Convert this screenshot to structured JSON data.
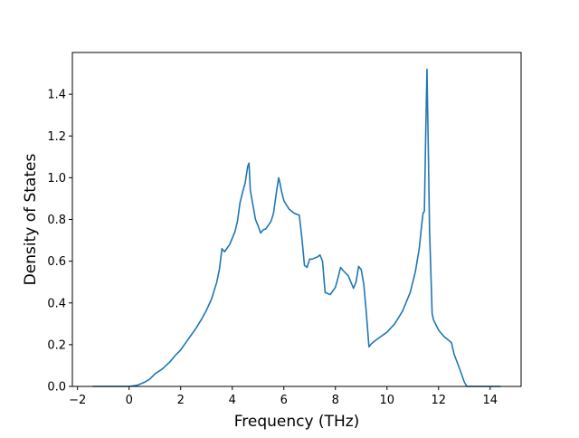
{
  "chart_data": {
    "type": "line",
    "title": "",
    "xlabel": "Frequency (THz)",
    "ylabel": "Density of States",
    "xlim": [
      -2.2,
      15.2
    ],
    "ylim": [
      0.0,
      1.6
    ],
    "x_ticks": [
      -2,
      0,
      2,
      4,
      6,
      8,
      10,
      12,
      14
    ],
    "x_tick_labels": [
      "−2",
      "0",
      "2",
      "4",
      "6",
      "8",
      "10",
      "12",
      "14"
    ],
    "y_ticks": [
      0.0,
      0.2,
      0.4,
      0.6,
      0.8,
      1.0,
      1.2,
      1.4
    ],
    "y_tick_labels": [
      "0.0",
      "0.2",
      "0.4",
      "0.6",
      "0.8",
      "1.0",
      "1.2",
      "1.4"
    ],
    "grid": false,
    "legend": "none",
    "series": [
      {
        "color": "#1f77b4",
        "x": [
          -1.4,
          -1.0,
          -0.5,
          0.0,
          0.3,
          0.6,
          0.8,
          1.0,
          1.3,
          1.6,
          1.8,
          2.0,
          2.2,
          2.4,
          2.6,
          2.8,
          3.0,
          3.2,
          3.4,
          3.5,
          3.6,
          3.7,
          3.9,
          4.1,
          4.2,
          4.3,
          4.4,
          4.5,
          4.6,
          4.65,
          4.7,
          4.8,
          4.9,
          5.0,
          5.1,
          5.2,
          5.3,
          5.5,
          5.6,
          5.7,
          5.8,
          5.85,
          5.9,
          6.0,
          6.2,
          6.4,
          6.6,
          6.7,
          6.8,
          6.9,
          7.0,
          7.1,
          7.3,
          7.4,
          7.5,
          7.6,
          7.8,
          8.0,
          8.1,
          8.2,
          8.3,
          8.5,
          8.6,
          8.7,
          8.8,
          8.9,
          9.0,
          9.1,
          9.2,
          9.3,
          9.4,
          9.6,
          10.0,
          10.3,
          10.6,
          10.9,
          11.1,
          11.25,
          11.35,
          11.4,
          11.45,
          11.5,
          11.55,
          11.6,
          11.65,
          11.7,
          11.75,
          11.8,
          12.0,
          12.2,
          12.4,
          12.5,
          12.6,
          12.8,
          13.0,
          13.1,
          13.5,
          14.0,
          14.4
        ],
        "y": [
          0.0,
          0.0,
          0.0,
          0.0,
          0.005,
          0.02,
          0.035,
          0.06,
          0.085,
          0.12,
          0.15,
          0.175,
          0.21,
          0.245,
          0.28,
          0.32,
          0.365,
          0.42,
          0.5,
          0.56,
          0.66,
          0.645,
          0.68,
          0.74,
          0.79,
          0.88,
          0.93,
          0.975,
          1.055,
          1.07,
          0.94,
          0.87,
          0.8,
          0.77,
          0.735,
          0.75,
          0.755,
          0.79,
          0.83,
          0.92,
          1.0,
          0.975,
          0.94,
          0.89,
          0.85,
          0.83,
          0.82,
          0.71,
          0.58,
          0.57,
          0.61,
          0.61,
          0.62,
          0.63,
          0.6,
          0.45,
          0.44,
          0.475,
          0.52,
          0.57,
          0.555,
          0.53,
          0.5,
          0.47,
          0.5,
          0.575,
          0.56,
          0.49,
          0.35,
          0.19,
          0.205,
          0.225,
          0.26,
          0.3,
          0.36,
          0.45,
          0.55,
          0.66,
          0.78,
          0.83,
          0.84,
          1.2,
          1.52,
          1.15,
          0.75,
          0.55,
          0.35,
          0.32,
          0.27,
          0.24,
          0.22,
          0.21,
          0.155,
          0.09,
          0.02,
          0.0,
          0.0,
          0.0,
          0.0
        ]
      }
    ]
  }
}
